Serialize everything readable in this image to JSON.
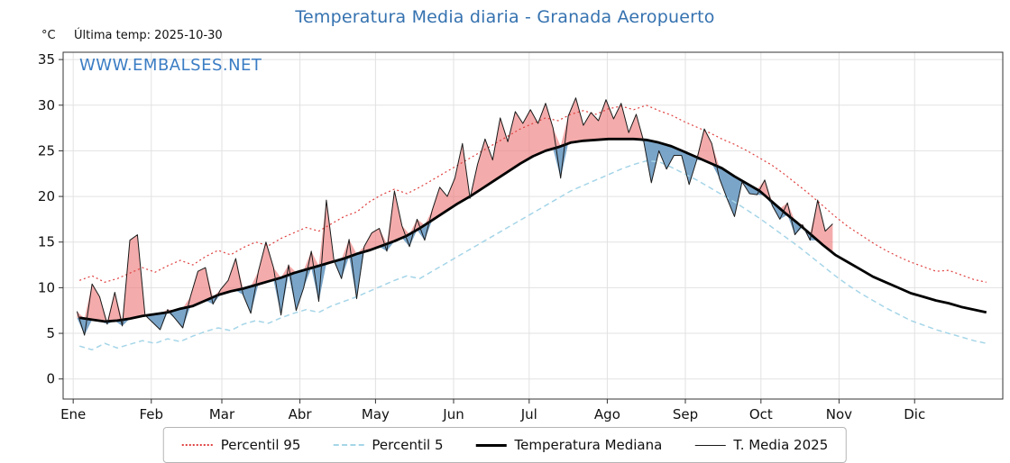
{
  "chart_data": {
    "type": "line",
    "title": "Temperatura Media diaria - Granada Aeropuerto",
    "unit_label": "°C",
    "annotation": "Última temp: 2025-10-30",
    "watermark": "WWW.EMBALSES.NET",
    "ylim": [
      -2.2,
      35.8
    ],
    "yticks": [
      0,
      5,
      10,
      15,
      20,
      25,
      30,
      35
    ],
    "x_axis": {
      "months": [
        "Ene",
        "Feb",
        "Mar",
        "Abr",
        "May",
        "Jun",
        "Jul",
        "Ago",
        "Sep",
        "Oct",
        "Nov",
        "Dic"
      ],
      "month_start_days": [
        0,
        31,
        59,
        90,
        120,
        151,
        181,
        212,
        243,
        273,
        304,
        334
      ]
    },
    "colors": {
      "title": "#3572b0",
      "watermark": "#3b7dc4",
      "p95": "#e04040",
      "p5": "#a5d5e8",
      "median": "#000000",
      "t2025": "#1a1a1a",
      "fill_above": "#ee7878",
      "fill_below": "#6b9bc3",
      "grid": "#e2e2e2"
    },
    "series": [
      {
        "name": "Percentil 95",
        "style": "dotted",
        "color": "#e04040",
        "start_day": 2.5,
        "step_days": 5,
        "values": [
          10.8,
          11.3,
          10.6,
          11.0,
          11.6,
          12.2,
          11.7,
          12.4,
          13.0,
          12.5,
          13.4,
          14.1,
          13.6,
          14.4,
          15.0,
          14.6,
          15.4,
          16.0,
          16.6,
          16.2,
          17.0,
          17.8,
          18.3,
          19.4,
          20.2,
          20.8,
          20.3,
          21.0,
          21.8,
          22.6,
          23.4,
          24.2,
          25.0,
          25.8,
          26.6,
          27.4,
          28.0,
          28.6,
          28.3,
          29.0,
          29.4,
          29.0,
          29.6,
          29.9,
          29.5,
          30.0,
          29.4,
          28.9,
          28.2,
          27.6,
          27.0,
          26.3,
          25.7,
          25.0,
          24.2,
          23.4,
          22.4,
          21.3,
          20.2,
          19.0,
          17.8,
          16.7,
          15.8,
          14.9,
          14.1,
          13.4,
          12.8,
          12.3,
          11.8,
          11.9,
          11.4,
          10.9,
          10.6
        ]
      },
      {
        "name": "Percentil 5",
        "style": "dashed",
        "color": "#a5d5e8",
        "start_day": 2.5,
        "step_days": 5,
        "values": [
          3.6,
          3.2,
          3.9,
          3.4,
          3.8,
          4.2,
          3.9,
          4.4,
          4.1,
          4.7,
          5.2,
          5.6,
          5.3,
          6.0,
          6.4,
          6.1,
          6.7,
          7.2,
          7.6,
          7.3,
          8.0,
          8.5,
          9.0,
          9.6,
          10.2,
          10.8,
          11.3,
          11.0,
          11.8,
          12.6,
          13.4,
          14.2,
          15.0,
          15.8,
          16.6,
          17.4,
          18.2,
          19.0,
          19.8,
          20.6,
          21.2,
          21.8,
          22.4,
          23.0,
          23.5,
          23.9,
          23.8,
          23.2,
          22.5,
          21.8,
          21.0,
          20.2,
          19.4,
          18.5,
          17.6,
          16.6,
          15.6,
          14.6,
          13.5,
          12.4,
          11.3,
          10.3,
          9.4,
          8.6,
          7.8,
          7.1,
          6.4,
          5.9,
          5.4,
          5.0,
          4.6,
          4.2,
          3.9
        ]
      },
      {
        "name": "Temperatura Mediana",
        "style": "solid-thick",
        "color": "#000000",
        "start_day": 2.5,
        "step_days": 5,
        "values": [
          6.7,
          6.5,
          6.3,
          6.4,
          6.6,
          6.9,
          7.1,
          7.3,
          7.7,
          8.0,
          8.6,
          9.2,
          9.6,
          9.9,
          10.3,
          10.7,
          11.1,
          11.6,
          12.0,
          12.4,
          12.8,
          13.2,
          13.7,
          14.1,
          14.6,
          15.1,
          15.7,
          16.5,
          17.4,
          18.3,
          19.2,
          20.0,
          20.9,
          21.8,
          22.7,
          23.6,
          24.4,
          25.0,
          25.4,
          25.9,
          26.1,
          26.2,
          26.3,
          26.3,
          26.3,
          26.2,
          25.9,
          25.5,
          24.9,
          24.3,
          23.7,
          23.1,
          22.2,
          21.4,
          20.6,
          19.4,
          18.2,
          17.1,
          15.9,
          14.7,
          13.6,
          12.8,
          12.0,
          11.2,
          10.6,
          10.0,
          9.4,
          9.0,
          8.6,
          8.3,
          7.9,
          7.6,
          7.3
        ]
      },
      {
        "name": "T. Media 2025",
        "style": "solid-thin",
        "color": "#1a1a1a",
        "start_day": 1.5,
        "step_days": 3,
        "values": [
          7.4,
          4.8,
          10.4,
          9.0,
          6.0,
          9.5,
          5.8,
          15.2,
          15.8,
          7.0,
          6.2,
          5.4,
          7.6,
          6.6,
          5.6,
          9.0,
          11.8,
          12.2,
          8.2,
          9.8,
          10.8,
          13.2,
          9.2,
          7.2,
          11.8,
          15.0,
          12.2,
          7.0,
          12.5,
          7.5,
          10.0,
          14.0,
          8.5,
          19.6,
          13.0,
          11.0,
          15.3,
          8.8,
          14.5,
          16.0,
          16.5,
          14.0,
          20.6,
          16.8,
          14.5,
          17.5,
          15.2,
          18.5,
          21.0,
          20.0,
          22.0,
          25.8,
          19.8,
          23.5,
          26.3,
          24.0,
          28.6,
          26.0,
          29.3,
          28.0,
          29.5,
          28.0,
          30.2,
          27.5,
          22.0,
          28.8,
          30.8,
          27.8,
          29.2,
          28.3,
          30.6,
          28.5,
          30.2,
          27.0,
          29.0,
          26.0,
          21.5,
          25.0,
          23.0,
          24.5,
          24.5,
          21.3,
          24.0,
          27.4,
          25.8,
          22.0,
          19.8,
          17.8,
          21.6,
          20.3,
          20.2,
          21.8,
          19.0,
          17.5,
          19.3,
          15.8,
          16.9,
          15.2,
          19.6,
          16.2,
          17.0
        ]
      }
    ]
  }
}
